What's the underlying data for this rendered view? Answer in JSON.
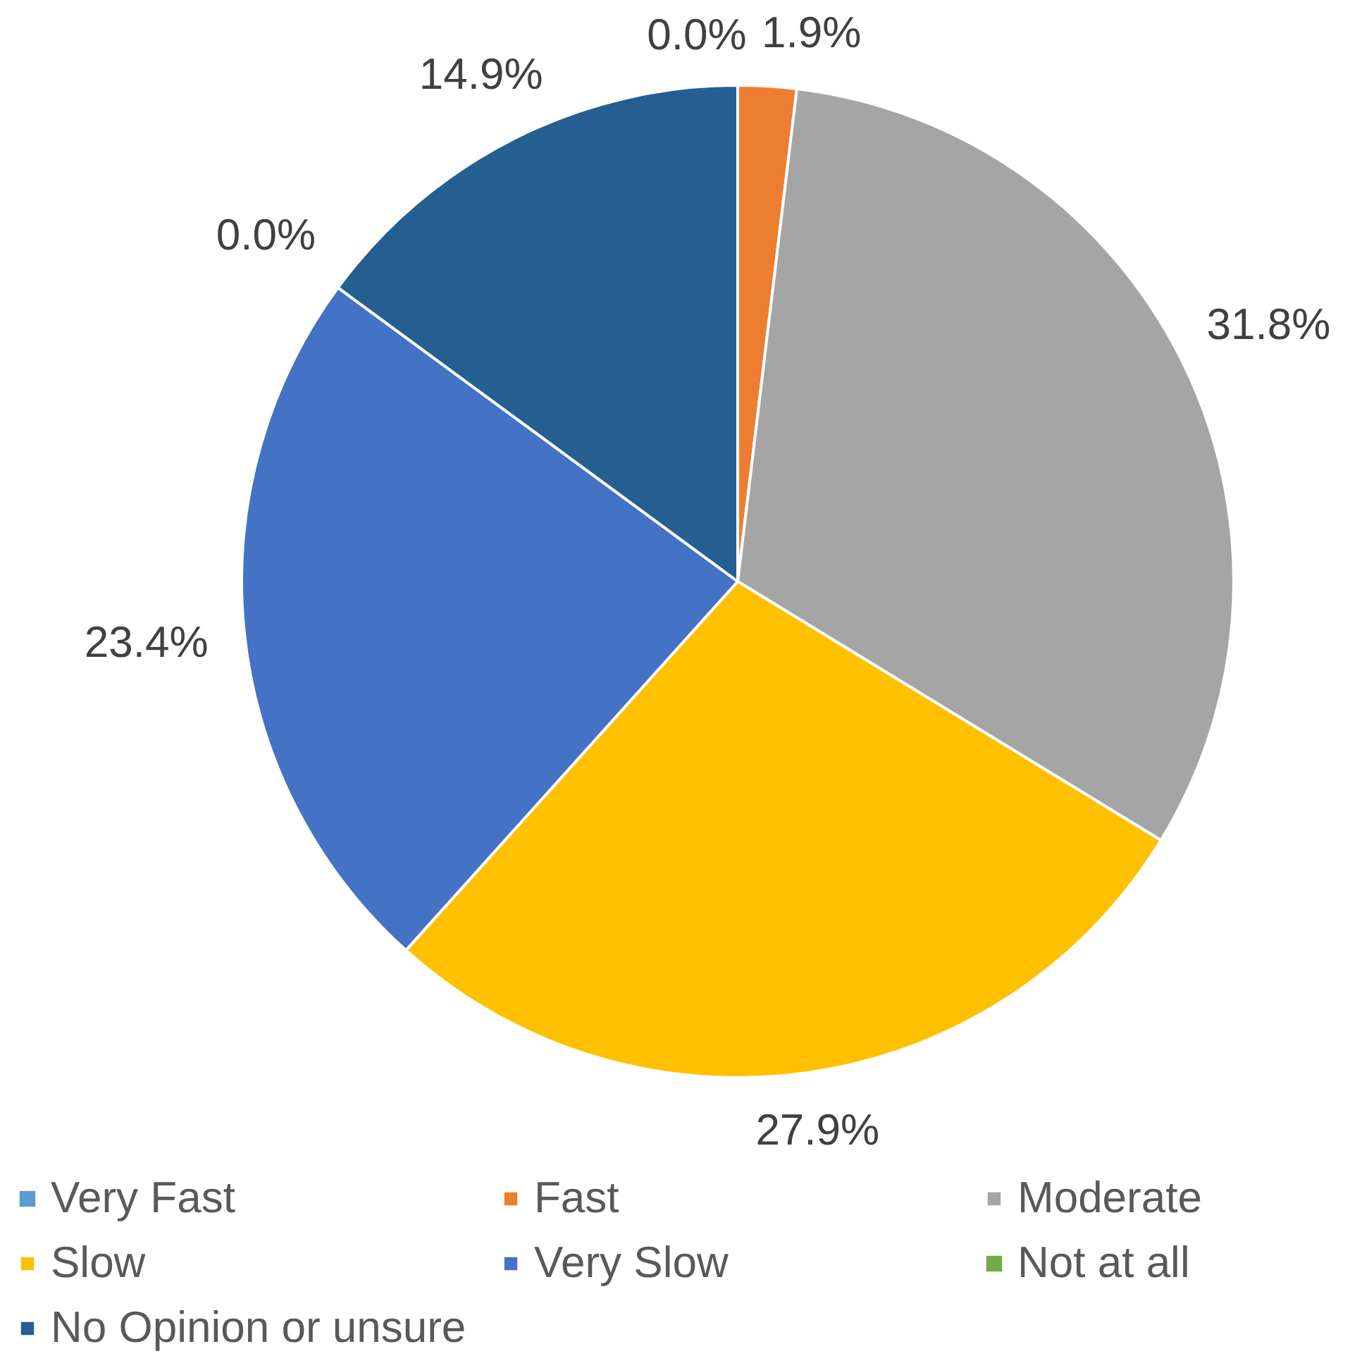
{
  "chart_data": {
    "type": "pie",
    "categories": [
      "Very Fast",
      "Fast",
      "Moderate",
      "Slow",
      "Very Slow",
      "Not at all",
      "No Opinion or unsure"
    ],
    "values": [
      0.0,
      1.9,
      31.8,
      27.9,
      23.4,
      0.0,
      14.9
    ],
    "colors": [
      "#5b9bd5",
      "#ed7d31",
      "#a5a5a5",
      "#ffc000",
      "#4472c4",
      "#70ad47",
      "#255e91"
    ],
    "value_labels": [
      "0.0%",
      "1.9%",
      "31.8%",
      "27.9%",
      "23.4%",
      "0.0%",
      "14.9%"
    ],
    "legend": "bottom"
  }
}
